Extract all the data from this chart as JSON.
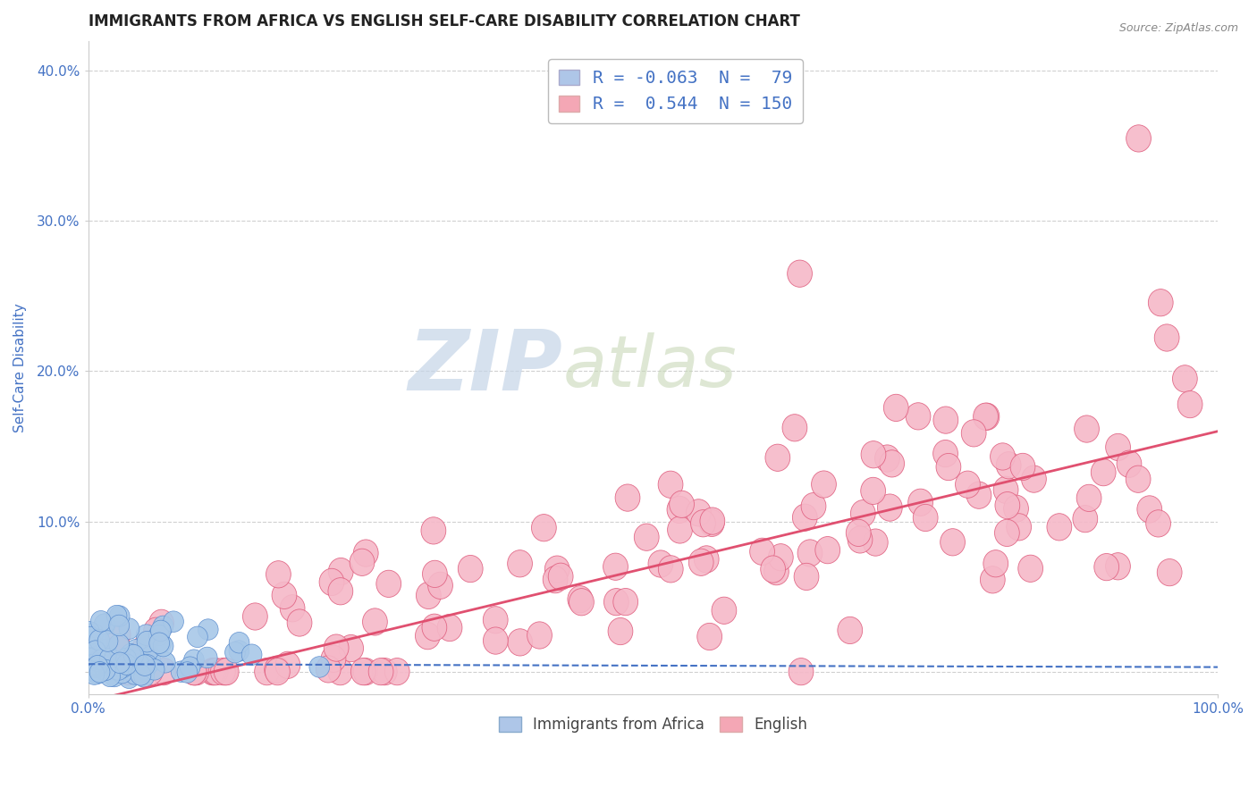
{
  "title": "IMMIGRANTS FROM AFRICA VS ENGLISH SELF-CARE DISABILITY CORRELATION CHART",
  "source": "Source: ZipAtlas.com",
  "ylabel": "Self-Care Disability",
  "watermark_part1": "ZIP",
  "watermark_part2": "atlas",
  "xlim": [
    0,
    1.0
  ],
  "ylim": [
    -0.015,
    0.42
  ],
  "yticks": [
    0.0,
    0.1,
    0.2,
    0.3,
    0.4
  ],
  "ytick_labels": [
    "",
    "10.0%",
    "20.0%",
    "30.0%",
    "40.0%"
  ],
  "xtick_labels": [
    "0.0%",
    "100.0%"
  ],
  "series_blue": {
    "R": -0.063,
    "N": 79,
    "color": "#a8c8e8",
    "edge_color": "#5588cc",
    "trend_color": "#4472c4",
    "legend_face": "#aec6e8"
  },
  "series_pink": {
    "R": 0.544,
    "N": 150,
    "color": "#f5b8c8",
    "edge_color": "#e06080",
    "trend_color": "#e05070",
    "legend_face": "#f4a7b5"
  },
  "background_color": "#ffffff",
  "grid_color": "#d0d0d0",
  "title_color": "#222222",
  "axis_label_color": "#4472c4",
  "tick_label_color": "#4472c4",
  "pink_trend_start_y": -0.02,
  "pink_trend_end_y": 0.16,
  "blue_trend_start_y": 0.005,
  "blue_trend_end_y": 0.003
}
